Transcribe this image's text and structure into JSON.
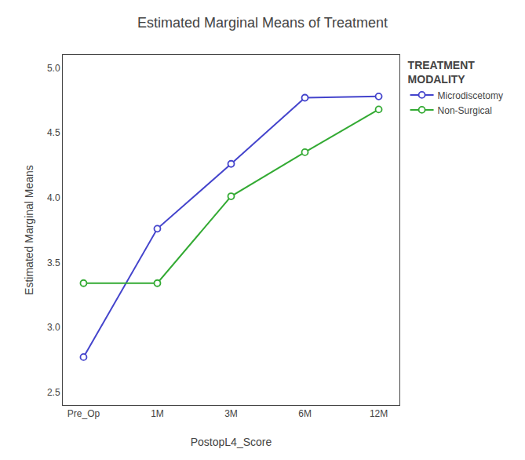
{
  "chart_data": {
    "type": "line",
    "title": "Estimated Marginal Means of Treatment",
    "xlabel": "PostopL4_Score",
    "ylabel": "Estimated Marginal Means",
    "categories": [
      "Pre_Op",
      "1M",
      "3M",
      "6M",
      "12M"
    ],
    "series": [
      {
        "name": "Microdiscetomy",
        "color": "#4444cc",
        "marker": "circle",
        "values": [
          2.77,
          3.76,
          4.26,
          4.77,
          4.78
        ]
      },
      {
        "name": "Non-Surgical",
        "color": "#33aa33",
        "marker": "circle",
        "values": [
          3.34,
          3.34,
          4.01,
          4.35,
          4.68
        ]
      }
    ],
    "ylim": [
      2.4,
      5.1
    ],
    "yticks": [
      2.5,
      {
        "value": 3.0,
        "label": "3.0"
      },
      3.5,
      {
        "value": 4.0,
        "label": "4.0"
      },
      4.5,
      {
        "value": 5.0,
        "label": "5.0"
      }
    ],
    "legend_title": "TREATMENT\nMODALITY",
    "legend": "upper right",
    "grid": false
  }
}
